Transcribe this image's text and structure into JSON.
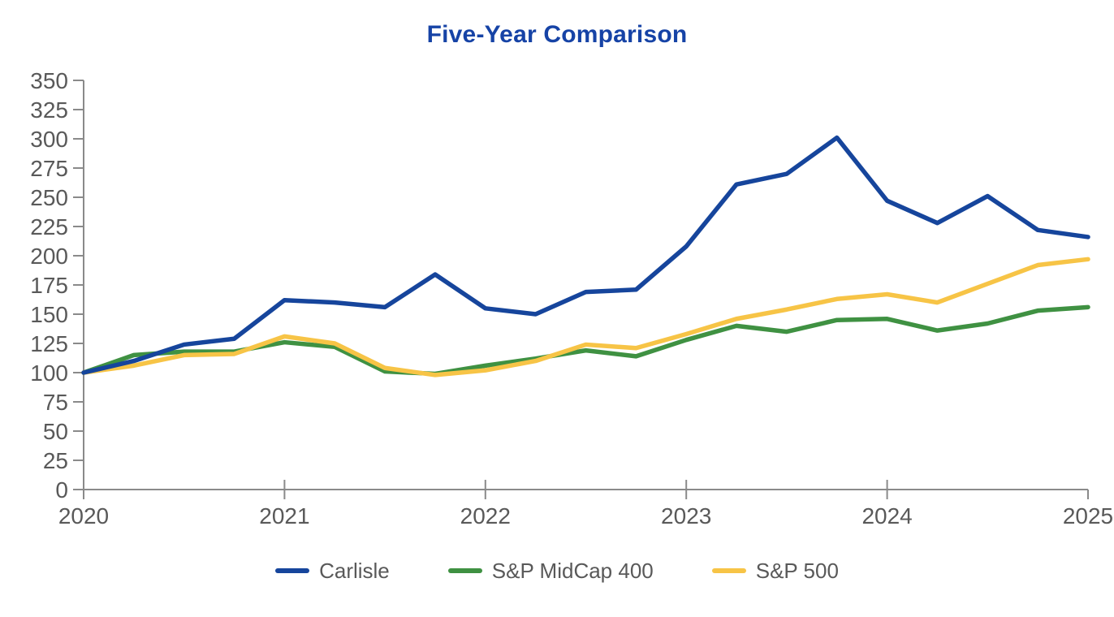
{
  "chart_data": {
    "type": "line",
    "title": "Five-Year Comparison",
    "title_color": "#1643A6",
    "xlabel": "",
    "ylabel": "",
    "x_tick_labels": [
      "2020",
      "2021",
      "2022",
      "2023",
      "2024",
      "2025"
    ],
    "points_per_year": 4,
    "x_note": "quarterly data points, index 0 = 2020 baseline of 100",
    "y_ticks": [
      0,
      25,
      50,
      75,
      100,
      125,
      150,
      175,
      200,
      225,
      250,
      275,
      300,
      325,
      350
    ],
    "ylim": [
      0,
      350
    ],
    "grid": "off",
    "legend_position": "bottom",
    "axis_color": "#8a8a8a",
    "tick_label_color": "#595959",
    "series": [
      {
        "name": "Carlisle",
        "color": "#16459C",
        "values": [
          100,
          110,
          124,
          129,
          162,
          160,
          156,
          184,
          155,
          150,
          169,
          171,
          208,
          261,
          270,
          301,
          247,
          228,
          251,
          222,
          216
        ]
      },
      {
        "name": "S&P MidCap 400",
        "color": "#3F9142",
        "values": [
          100,
          115,
          118,
          118,
          126,
          122,
          101,
          99,
          106,
          112,
          119,
          114,
          128,
          140,
          135,
          145,
          146,
          136,
          142,
          153,
          156
        ]
      },
      {
        "name": "S&P 500",
        "color": "#F7C446",
        "values": [
          100,
          106,
          115,
          116,
          131,
          125,
          104,
          98,
          102,
          110,
          124,
          121,
          133,
          146,
          154,
          163,
          167,
          160,
          176,
          192,
          197
        ]
      }
    ]
  }
}
